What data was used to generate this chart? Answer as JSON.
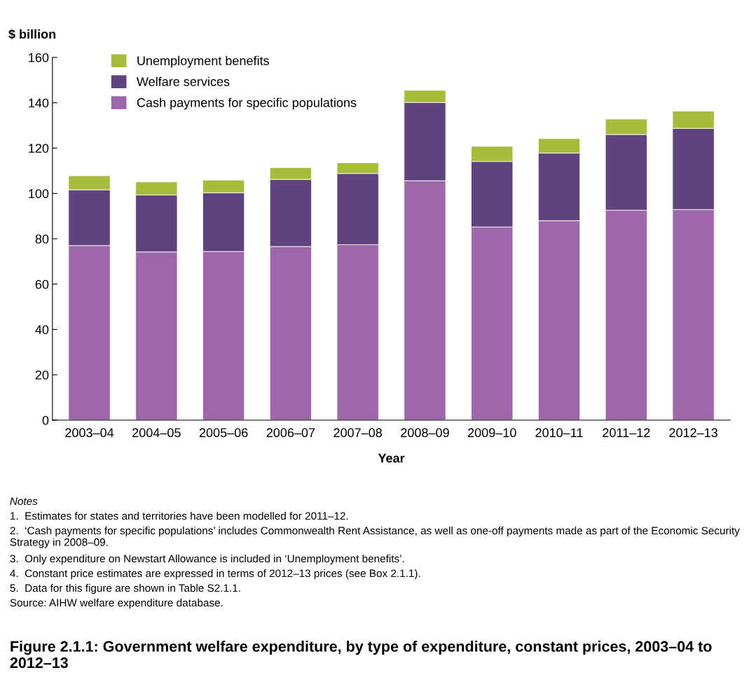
{
  "chart_data": {
    "type": "bar",
    "stacked": true,
    "title": "Figure 2.1.1: Government welfare expenditure, by type of expenditure, constant prices, 2003–04 to 2012–13",
    "ylabel": "$ billion",
    "xlabel": "Year",
    "categories": [
      "2003–04",
      "2004–05",
      "2005–06",
      "2006–07",
      "2007–08",
      "2008–09",
      "2009–10",
      "2010–11",
      "2011–12",
      "2012–13"
    ],
    "series": [
      {
        "name": "Cash payments for specific populations",
        "color": "#9e67aa",
        "values": [
          77.0,
          74.2,
          74.4,
          76.6,
          77.4,
          105.6,
          85.2,
          88.0,
          92.6,
          92.9
        ]
      },
      {
        "name": "Welfare services",
        "color": "#60437c",
        "values": [
          24.6,
          25.1,
          25.9,
          29.6,
          31.4,
          34.5,
          28.9,
          29.8,
          33.4,
          35.8
        ]
      },
      {
        "name": "Unemployment benefits",
        "color": "#a6bd3b",
        "values": [
          6.2,
          5.8,
          5.6,
          5.2,
          4.7,
          5.4,
          6.7,
          6.4,
          6.8,
          7.6
        ]
      }
    ],
    "ylim": [
      0,
      160
    ],
    "yticks": [
      0,
      20,
      40,
      60,
      80,
      100,
      120,
      140,
      160
    ],
    "grid": false,
    "legend": "top left",
    "annotations": [
      "Notes",
      "1.  Estimates for states and territories have been modelled for 2011–12.",
      "2.  ‘Cash payments for specific populations’ includes Commonwealth Rent Assistance, as well as one-off payments made as part of the Economic Security Strategy in 2008–09.",
      "3.  Only expenditure on Newstart Allowance is included in ‘Unemployment benefits’.",
      "4.  Constant price estimates are expressed in terms of 2012–13 prices (see Box 2.1.1).",
      "5.  Data for this figure are shown in Table S2.1.1.",
      "Source: AIHW welfare expenditure database."
    ]
  }
}
